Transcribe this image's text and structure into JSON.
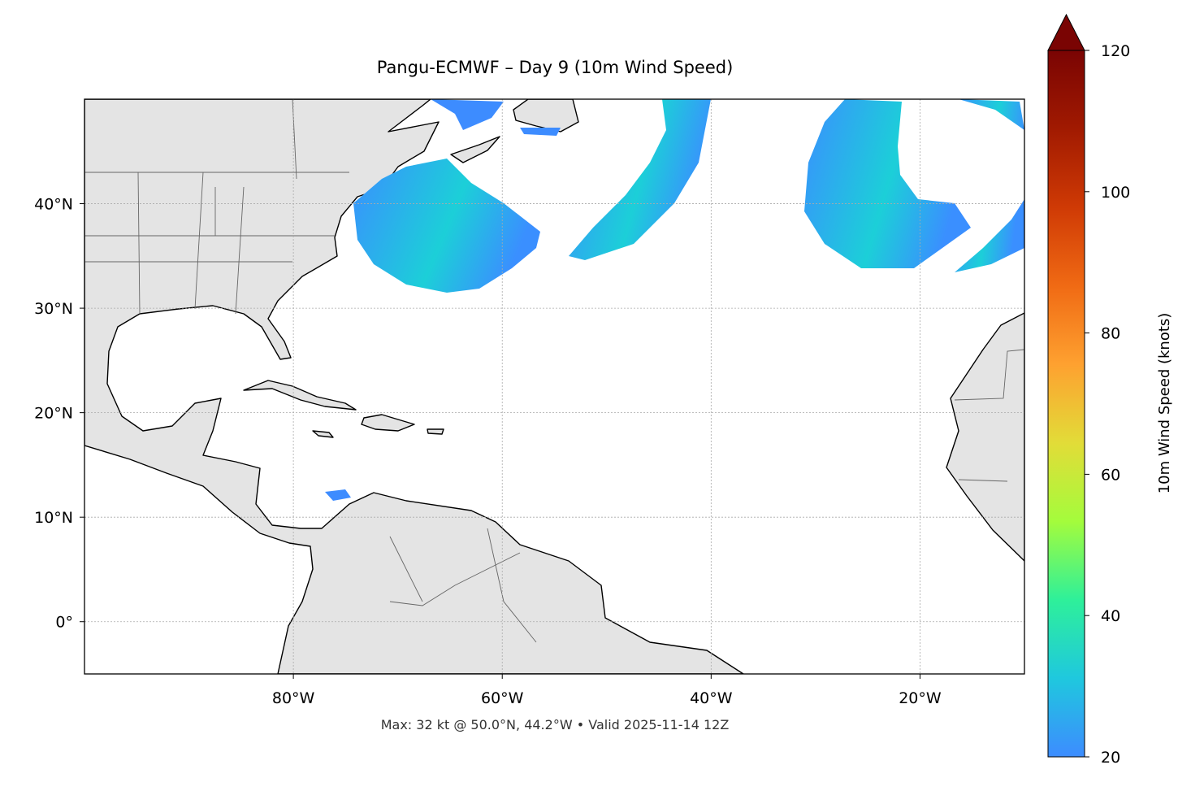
{
  "chart_data": {
    "type": "map",
    "title": "Pangu-ECMWF – Day 9 (10m Wind Speed)",
    "footnote": "Max: 32 kt @ 50.0°N, 44.2°W • Valid 2025-11-14 12Z",
    "xlim": [
      -100,
      -10
    ],
    "ylim": [
      -5,
      50
    ],
    "xticks": [
      {
        "value": -80,
        "label": "80°W"
      },
      {
        "value": -60,
        "label": "60°W"
      },
      {
        "value": -40,
        "label": "40°W"
      },
      {
        "value": -20,
        "label": "20°W"
      }
    ],
    "yticks": [
      {
        "value": 0,
        "label": "0°"
      },
      {
        "value": 10,
        "label": "10°N"
      },
      {
        "value": 20,
        "label": "20°N"
      },
      {
        "value": 30,
        "label": "30°N"
      },
      {
        "value": 40,
        "label": "40°N"
      }
    ],
    "grid": true,
    "colorbar": {
      "label": "10m Wind Speed (knots)",
      "clim": [
        20,
        120
      ],
      "ticks": [
        20,
        40,
        60,
        80,
        100,
        120
      ],
      "colors": [
        "#3d8cff",
        "#1fc8de",
        "#2ef09a",
        "#a4fc3c",
        "#e2dc38",
        "#fea130",
        "#f06a14",
        "#cf3a05",
        "#a11a01",
        "#7a0403"
      ]
    }
  }
}
